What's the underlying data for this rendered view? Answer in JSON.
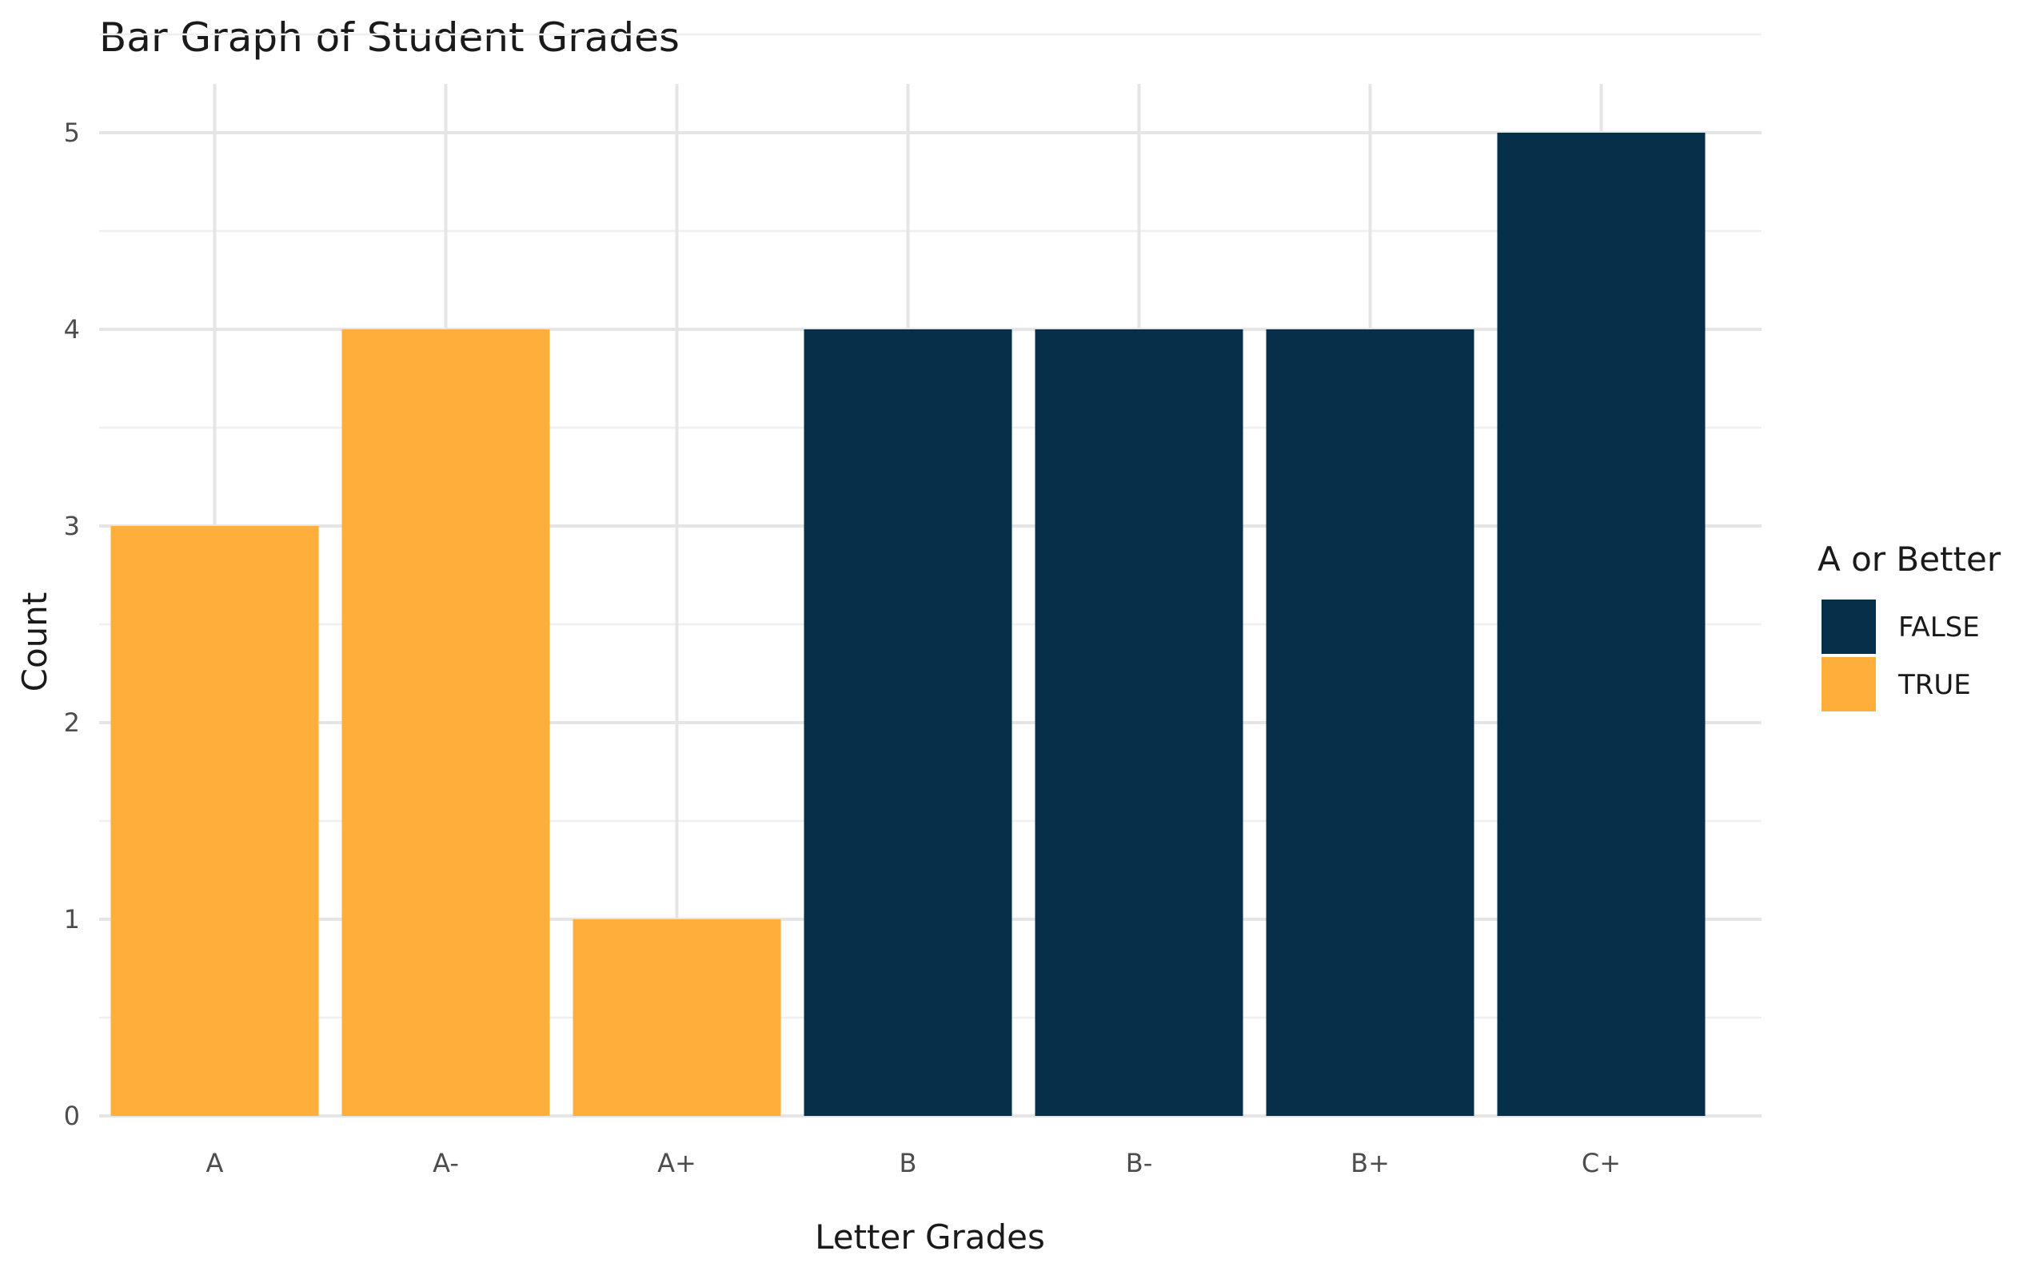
{
  "chart_data": {
    "type": "bar",
    "title": "Bar Graph of Student Grades",
    "xlabel": "Letter Grades",
    "ylabel": "Count",
    "categories": [
      "A",
      "A-",
      "A+",
      "B",
      "B-",
      "B+",
      "C+"
    ],
    "values": [
      3,
      4,
      1,
      4,
      4,
      4,
      5
    ],
    "groups": [
      "TRUE",
      "TRUE",
      "TRUE",
      "FALSE",
      "FALSE",
      "FALSE",
      "FALSE"
    ],
    "ylim": [
      0,
      5
    ],
    "yticks": [
      "0",
      "1",
      "2",
      "3",
      "4",
      "5"
    ],
    "grid": true,
    "legend": {
      "title": "A or Better",
      "position": "right",
      "entries": [
        {
          "label": "FALSE",
          "color": "#06304a"
        },
        {
          "label": "TRUE",
          "color": "#fdae3b"
        }
      ]
    }
  }
}
